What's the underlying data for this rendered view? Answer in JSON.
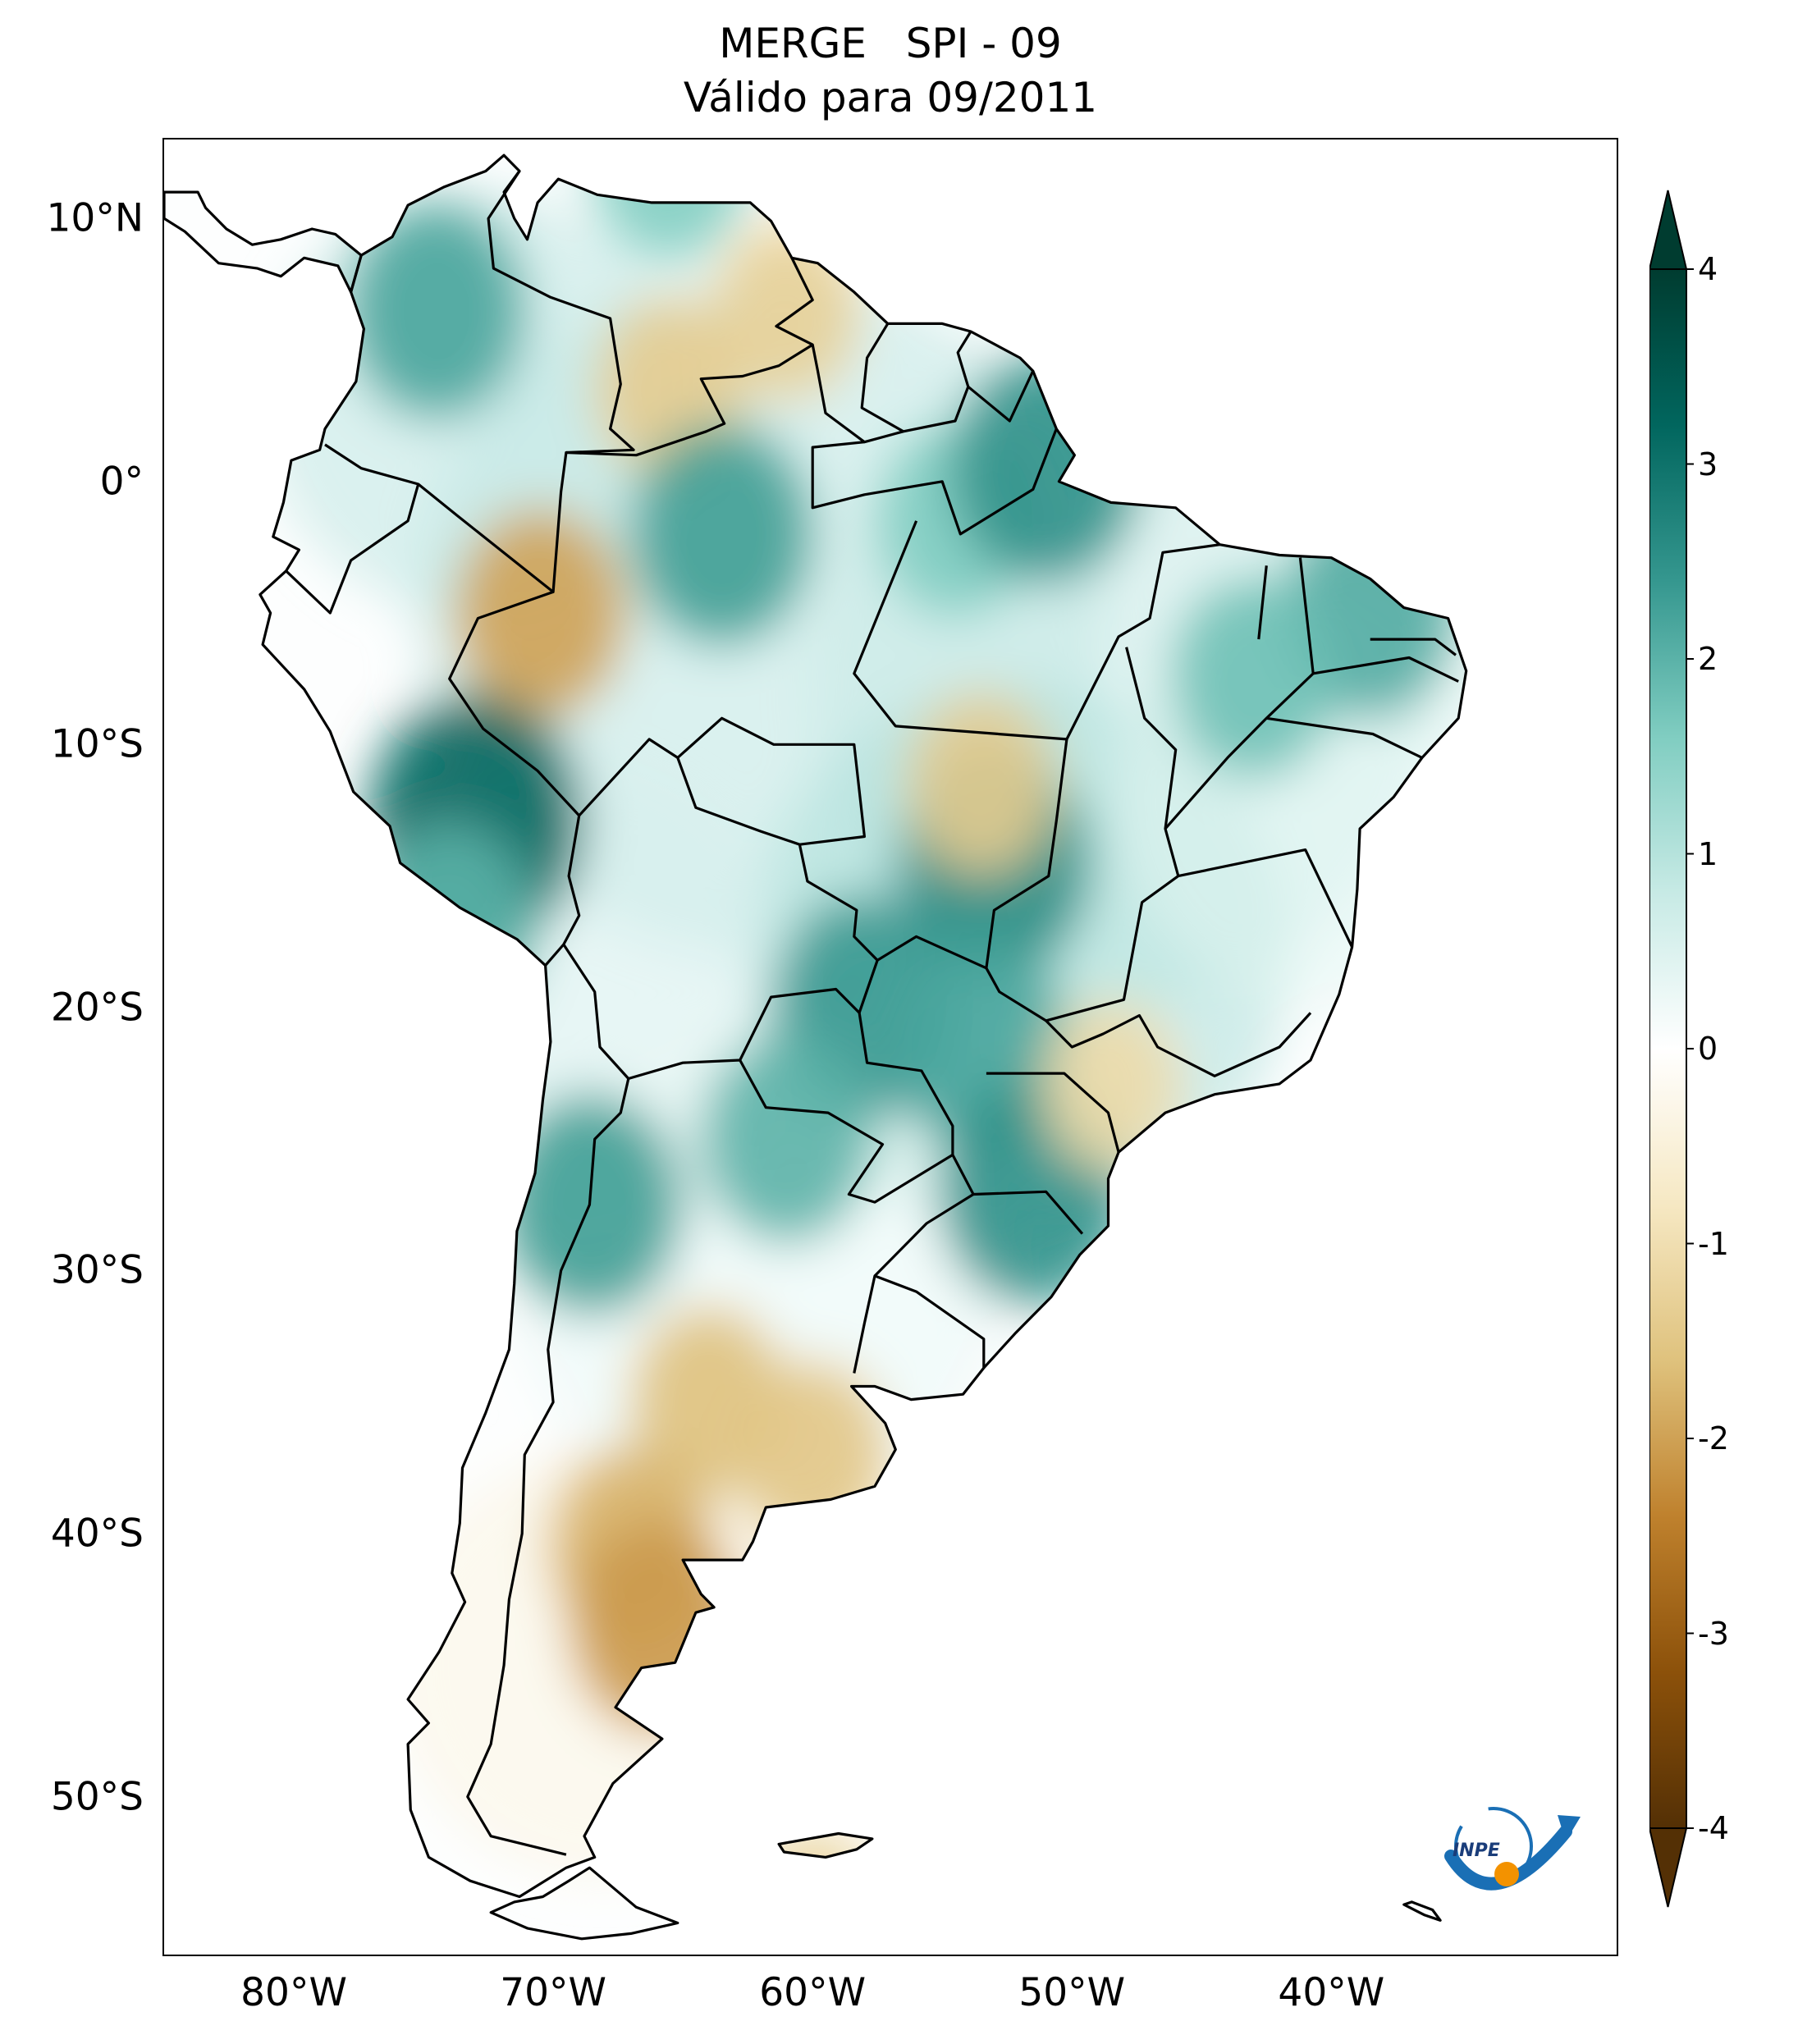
{
  "title": {
    "line1": "MERGE   SPI - 09",
    "line2": "Válido para 09/2011"
  },
  "map": {
    "projection": "PlateCarree",
    "lon_range": [
      -85,
      -29
    ],
    "lat_range": [
      -56,
      13
    ],
    "lat_ticks": [
      {
        "value": 10,
        "label": "10°N"
      },
      {
        "value": 0,
        "label": "0°"
      },
      {
        "value": -10,
        "label": "10°S"
      },
      {
        "value": -20,
        "label": "20°S"
      },
      {
        "value": -30,
        "label": "30°S"
      },
      {
        "value": -40,
        "label": "40°S"
      },
      {
        "value": -50,
        "label": "50°S"
      }
    ],
    "lon_ticks": [
      {
        "value": -80,
        "label": "80°W"
      },
      {
        "value": -70,
        "label": "70°W"
      },
      {
        "value": -60,
        "label": "60°W"
      },
      {
        "value": -50,
        "label": "50°W"
      },
      {
        "value": -40,
        "label": "40°W"
      }
    ],
    "anomaly_regions": [
      {
        "lon": -74.5,
        "lat": 6.5,
        "value": 2.2
      },
      {
        "lon": -65.5,
        "lat": 12.0,
        "value": 1.6
      },
      {
        "lon": -61.0,
        "lat": 6.5,
        "value": -1.3
      },
      {
        "lon": -65.5,
        "lat": 3.5,
        "value": -1.4
      },
      {
        "lon": -70.5,
        "lat": -5.0,
        "value": -2.0
      },
      {
        "lon": -73.0,
        "lat": -13.0,
        "value": 3.2
      },
      {
        "lon": -74.0,
        "lat": -17.0,
        "value": 2.0
      },
      {
        "lon": -63.5,
        "lat": -2.0,
        "value": 2.3
      },
      {
        "lon": -54.5,
        "lat": -1.5,
        "value": 1.6
      },
      {
        "lon": -51.0,
        "lat": 0.5,
        "value": 2.5
      },
      {
        "lon": -53.0,
        "lat": -14.5,
        "value": 2.6
      },
      {
        "lon": -58.0,
        "lat": -20.0,
        "value": 2.4
      },
      {
        "lon": -53.5,
        "lat": -21.5,
        "value": 2.2
      },
      {
        "lon": -51.5,
        "lat": -27.0,
        "value": 2.5
      },
      {
        "lon": -68.5,
        "lat": -27.5,
        "value": 2.3
      },
      {
        "lon": -61.0,
        "lat": -25.0,
        "value": 2.0
      },
      {
        "lon": -38.5,
        "lat": -5.0,
        "value": 2.1
      },
      {
        "lon": -43.0,
        "lat": -7.5,
        "value": 1.8
      },
      {
        "lon": -53.5,
        "lat": -11.5,
        "value": -1.4
      },
      {
        "lon": -64.0,
        "lat": -35.0,
        "value": -1.6
      },
      {
        "lon": -60.0,
        "lat": -37.0,
        "value": -1.5
      },
      {
        "lon": -67.0,
        "lat": -40.5,
        "value": -1.8
      },
      {
        "lon": -66.0,
        "lat": -43.5,
        "value": -2.1
      },
      {
        "lon": -60.0,
        "lat": -54.5,
        "value": -1.2
      },
      {
        "lon": -48.5,
        "lat": -23.0,
        "value": -1.1
      }
    ]
  },
  "colorbar": {
    "colormap": "BrBG",
    "range": [
      -4,
      4
    ],
    "extend": "both",
    "ticks": [
      {
        "value": 4,
        "label": "4"
      },
      {
        "value": 3,
        "label": "3"
      },
      {
        "value": 2,
        "label": "2"
      },
      {
        "value": 1,
        "label": "1"
      },
      {
        "value": 0,
        "label": "0"
      },
      {
        "value": -1,
        "label": "-1"
      },
      {
        "value": -2,
        "label": "-2"
      },
      {
        "value": -3,
        "label": "-3"
      },
      {
        "value": -4,
        "label": "-4"
      }
    ],
    "color_stops": [
      "#543005",
      "#8c510a",
      "#bf812d",
      "#dfc27d",
      "#f6e8c3",
      "#ffffff",
      "#c7eae5",
      "#80cdc1",
      "#35978f",
      "#01665e",
      "#003c30"
    ]
  },
  "logo": {
    "text": "INPE",
    "colors": [
      "#1a6fb5",
      "#f39200"
    ]
  }
}
